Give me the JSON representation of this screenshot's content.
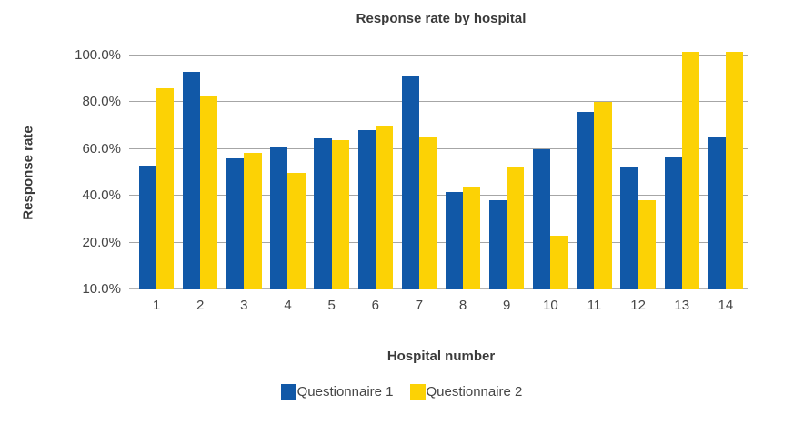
{
  "chart_data": {
    "type": "bar",
    "title": "Response rate by hospital",
    "xlabel": "Hospital number",
    "ylabel": "Response rate",
    "categories": [
      "1",
      "2",
      "3",
      "4",
      "5",
      "6",
      "7",
      "8",
      "9",
      "10",
      "11",
      "12",
      "13",
      "14"
    ],
    "series": [
      {
        "name": "Questionnaire 1",
        "color": "#1158A7",
        "values": [
          53,
          93,
          56,
          61,
          64.5,
          68,
          91,
          41.5,
          38,
          60,
          76,
          52,
          56.5,
          65.5
        ]
      },
      {
        "name": "Questionnaire 2",
        "color": "#FCD205",
        "values": [
          86,
          82.5,
          58.5,
          50,
          64,
          69.5,
          65,
          43.5,
          52,
          23,
          80,
          38,
          100,
          100
        ]
      }
    ],
    "y_ticks": [
      {
        "label": "100.0%",
        "value": 100
      },
      {
        "label": "80.0%",
        "value": 80
      },
      {
        "label": "60.0%",
        "value": 60
      },
      {
        "label": "40.0%",
        "value": 40
      },
      {
        "label": "20.0%",
        "value": 20
      },
      {
        "label": "10.0%",
        "value": 10
      }
    ],
    "axis_min": 10,
    "grid": true,
    "legend_position": "bottom",
    "gridline_color": "#A6A6A6"
  }
}
